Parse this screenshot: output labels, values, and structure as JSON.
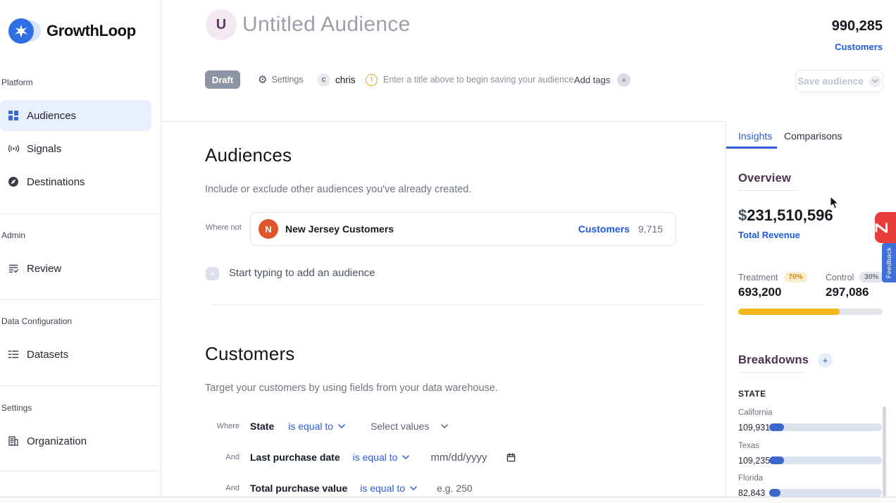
{
  "app": {
    "brand": "GrowthLoop"
  },
  "sidebar": {
    "sections": [
      {
        "label": "Platform",
        "items": [
          {
            "label": "Audiences"
          },
          {
            "label": "Signals"
          },
          {
            "label": "Destinations"
          }
        ]
      },
      {
        "label": "Admin",
        "items": [
          {
            "label": "Review"
          }
        ]
      },
      {
        "label": "Data Configuration",
        "items": [
          {
            "label": "Datasets"
          }
        ]
      },
      {
        "label": "Settings",
        "items": [
          {
            "label": "Organization"
          }
        ]
      }
    ]
  },
  "header": {
    "avatar_letter": "U",
    "title": "Untitled Audience",
    "customer_count": "990,285",
    "customer_count_label": "Customers",
    "status_badge": "Draft",
    "settings_label": "Settings",
    "user_initial": "c",
    "user_name": "chris",
    "warning_icon": "!",
    "warning_message": "Enter a title above to begin saving your audience.",
    "add_tags_label": "Add tags",
    "save_button_label": "Save audience"
  },
  "audiences_section": {
    "title": "Audiences",
    "subtitle": "Include or exclude other audiences you've already created.",
    "condition_label": "Where not",
    "audience_card": {
      "initial": "N",
      "name": "New Jersey Customers",
      "type_label": "Customers",
      "count": "9,715"
    },
    "add_placeholder": "Start typing to add an audience"
  },
  "customers_section": {
    "title": "Customers",
    "subtitle": "Target your customers by using fields from your data warehouse.",
    "filters": [
      {
        "conjunction": "Where",
        "field": "State",
        "operator": "is equal to",
        "value": "Select values"
      },
      {
        "conjunction": "And",
        "field": "Last purchase date",
        "operator": "is equal to",
        "value": "mm/dd/yyyy"
      },
      {
        "conjunction": "And",
        "field": "Total purchase value",
        "operator": "is equal to",
        "value": "e.g. 250"
      }
    ]
  },
  "insights_panel": {
    "tabs": {
      "insights": "Insights",
      "comparisons": "Comparisons"
    },
    "overview": {
      "title": "Overview",
      "revenue_currency": "$",
      "revenue_amount": "231,510,596",
      "revenue_label": "Total Revenue",
      "treatment_label": "Treatment",
      "treatment_percent": "70%",
      "treatment_value": "693,200",
      "control_label": "Control",
      "control_percent": "30%",
      "control_value": "297,086",
      "treatment_split": 70
    },
    "breakdowns": {
      "title": "Breakdowns",
      "group_label": "STATE",
      "chart_data": {
        "type": "bar",
        "orientation": "horizontal",
        "categories": [
          "California",
          "Texas",
          "Florida"
        ],
        "values": [
          109931,
          109235,
          82843
        ],
        "value_labels": [
          "109,931",
          "109,235",
          "82,843"
        ],
        "bar_percents": [
          13,
          13,
          10
        ]
      }
    }
  },
  "edge_widgets": {
    "badge_letter": "Z",
    "feedback_label": "Feedback"
  },
  "colors": {
    "accent_blue": "#2e5bd7",
    "link_blue": "#1d5bd6",
    "amber": "#f6b71b",
    "bar_blue": "#3a67cc",
    "alert_red": "#e83b3b",
    "purple_heading": "#4d3150",
    "draft_gray": "#8d95a5",
    "warning_amber": "#e7a514",
    "audience_avatar_orange": "#e0542b"
  }
}
